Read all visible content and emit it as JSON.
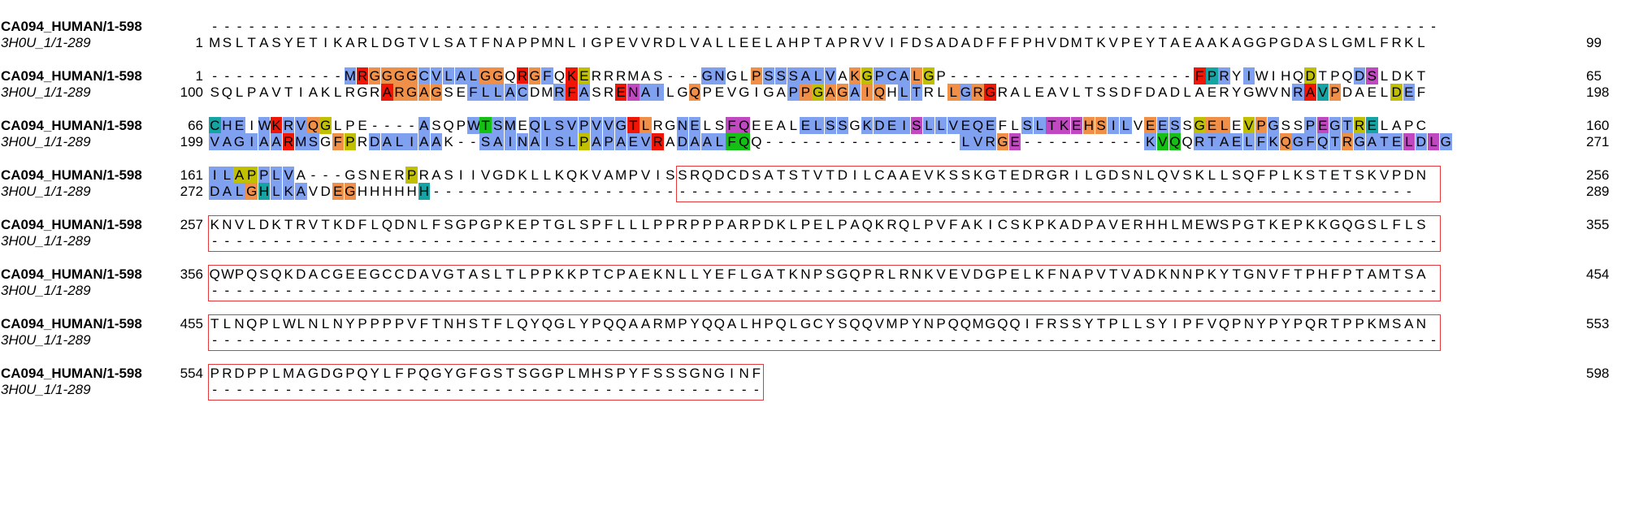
{
  "colors": {
    "hydrophobic": "#80a0f0",
    "positive": "#f01505",
    "negative": "#c048c0",
    "polar": "#15c015",
    "cysteine": "#f08080",
    "glycine": "#f09048",
    "proline": "#c0c000",
    "aromatic": "#15a4a4",
    "box": "#e33b3b"
  },
  "sequences": [
    {
      "name": "CA094_HUMAN/1-598",
      "style": "bold"
    },
    {
      "name": "3H0U_1/1-289",
      "style": "italic"
    }
  ],
  "blocks": [
    {
      "rows": [
        {
          "start": "",
          "end": "",
          "seq": "----------------------------------------------------------------------------------------------------",
          "colors": "                                                                                                    "
        },
        {
          "start": "1",
          "end": "99",
          "seq": "MSLTASYETIKARLDGTVLSATFNAPPMNLIGPEVVRDLVALLEELAHPTAPRVVIFDSADADFFFPHVDMTKVPEYTAEAAKAGGPGDASLGMLFRKL",
          "colors": "                                                                                                    "
        }
      ]
    },
    {
      "rows": [
        {
          "start": "1",
          "end": "65",
          "seq": "-----------MRGGGGCVLALGGQRGFQKERRRMAS---GNGLPSSSALVAKGPCALGP--------------------FPRYIWIHQDTPQDSLDKT",
          "colors": "           hrgggghhhhhgg rgh rp      ggghh  ghhhhhh gphhhgp                   hprah h    p   hd  "
        },
        {
          "start": "100",
          "end": "198",
          "seq": "SQLPAVTIAKLRGRARGAGSEFLLACDMRFASRENAILGQPEVGIGAPPGAGAIQHLTRLLGRGRALEAVLTSSDFDADLAERYGWVNRAVPDAELDEF",
          "colors": "              rgggg  hhhhh  hrh  rdhh  g       hgpgghgg hh  ghgr                        hrag    ph  hhd  "
        }
      ]
    },
    {
      "rows": [
        {
          "start": "66",
          "end": "160",
          "seq": "CHEIWKRVQGLPE----ASQPWTSMEQLSVPVVGTLRGNELSFQEEALELSSGKDEISLLVEQEFLSLTKEHSILVEESSGELEVPGSSPEGTRELAPC",
          "colors": "ahh hrhhgp      hh   hnhh hhhhhhhhrg  hh  dd    hhhh hhhhdhhhhhh  hhdddgghh ghh pgg pgh  hdhhpa"
        },
        {
          "start": "199",
          "end": "271",
          "seq": "VAGIAARMSGFPRDALIAAK--SAINAISLPAPAEVRADAALFQQ----------------LVRGE----------KVQQRTAELFKQGFQTRGATELDLG",
          "colors": "hhhhhhrhh gp hhhhhh   hhhhhhhhphhhhhr hhhhnn                 hhhgd          hnn hhhhhhhghhhhghhhhdhdhg"
        }
      ]
    },
    {
      "rows": [
        {
          "start": "161",
          "end": "256",
          "seq": "ILAPPLVA---GSNERPRASIIVGDKLLKQKVAMPVISSRQDCDSATSTVTDILCAAEVKSSKGTEDRGRILGDSNLQVSKLLSQFPLKSTETSKVPDN",
          "colors": "hhpphhh   g     p"
        },
        {
          "start": "272",
          "end": "289",
          "seq": "DALGHLKAVDEGHHHHHH--------------------------------------------------------------------------------",
          "colors": "hhhgahhh  gg     a"
        }
      ]
    },
    {
      "rows": [
        {
          "start": "257",
          "end": "355",
          "seq": "KNVLDKTRVTKDFLQDNLFSGPGPKEPTGLSPFLLLPPRPPPARPDKLPELPAQKRQLPVFAKICSKPKADPAVERHHLMEWSPGTKEPKKGQGSLFLS",
          "colors": ""
        },
        {
          "start": "",
          "end": "",
          "seq": "----------------------------------------------------------------------------------------------------",
          "colors": ""
        }
      ]
    },
    {
      "rows": [
        {
          "start": "356",
          "end": "454",
          "seq": "QWPQSQKDACGEEGCCDAVGTASLTLPPKKPTCPAEKNLLYEFLGATKNPSGQPRLRNKVEVDGPELKFNAPVTVADKNNPKYTGNVFTPHFPTAMTSA",
          "colors": ""
        },
        {
          "start": "",
          "end": "",
          "seq": "----------------------------------------------------------------------------------------------------",
          "colors": ""
        }
      ]
    },
    {
      "rows": [
        {
          "start": "455",
          "end": "553",
          "seq": "TLNQPLWLNLNYPPPPVFTNHSTFLQYQGLYPQQAARMPYQQALHPQLGCYSQQVMPYNPQQMGQQIFRSSYTPLLSYIPFVQPNYPYPQRTPPKMSAN",
          "colors": ""
        },
        {
          "start": "",
          "end": "",
          "seq": "----------------------------------------------------------------------------------------------------",
          "colors": ""
        }
      ]
    },
    {
      "rows": [
        {
          "start": "554",
          "end": "598",
          "seq": "PRDPPLMAGDGPQYLFPQGYGFGSTSGGPLMHSPYFSSSGNGINF",
          "colors": ""
        },
        {
          "start": "",
          "end": "",
          "seq": "---------------------------------------------",
          "colors": ""
        }
      ]
    }
  ],
  "unaligned_region_boxes": [
    {
      "block": 3,
      "from_col": 38,
      "to_col": 100
    },
    {
      "block": 4,
      "from_col": 0,
      "to_col": 100
    },
    {
      "block": 5,
      "from_col": 0,
      "to_col": 100
    },
    {
      "block": 6,
      "from_col": 0,
      "to_col": 100
    },
    {
      "block": 7,
      "from_col": 0,
      "to_col": 45
    }
  ]
}
